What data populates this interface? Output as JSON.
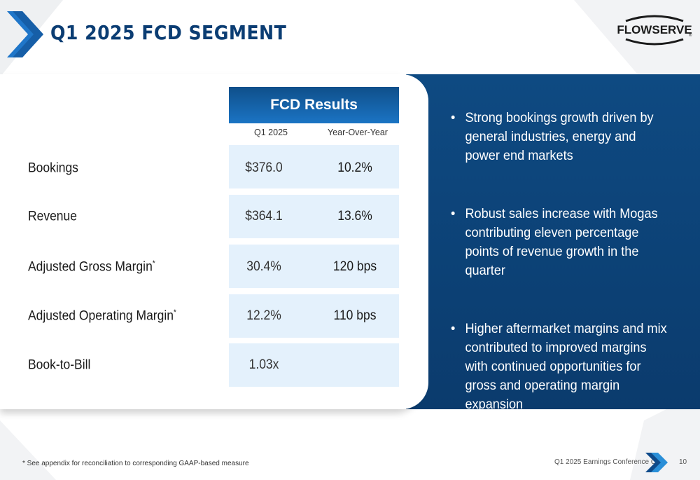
{
  "title": "Q1 2025 FCD SEGMENT",
  "logo": {
    "text": "FLOWSERVE",
    "registered": "®"
  },
  "results": {
    "header": "FCD Results",
    "col_q1": "Q1 2025",
    "col_yoy": "Year-Over-Year",
    "rows": [
      {
        "label": "Bookings",
        "sup": "",
        "q1": "$376.0",
        "yoy": "10.2%"
      },
      {
        "label": "Revenue",
        "sup": "",
        "q1": "$364.1",
        "yoy": "13.6%"
      },
      {
        "label": "Adjusted Gross Margin",
        "sup": "*",
        "q1": "30.4%",
        "yoy": "120 bps"
      },
      {
        "label": "Adjusted Operating Margin",
        "sup": "*",
        "q1": "12.2%",
        "yoy": "110 bps"
      },
      {
        "label": "Book-to-Bill",
        "sup": "",
        "q1": "1.03x",
        "yoy": ""
      }
    ]
  },
  "bullets": [
    "Strong bookings growth driven by general industries, energy and power end markets",
    "Robust sales increase with Mogas contributing eleven percentage points of revenue growth in the quarter",
    "Higher aftermarket margins and mix contributed to improved margins with continued opportunities for gross and operating margin expansion"
  ],
  "bullet_symbol": "•",
  "footnote": "* See appendix for reconciliation to corresponding GAAP-based measure",
  "footer_label": "Q1 2025 Earnings Conference Call",
  "page_number": "10",
  "colors": {
    "navy": "#0b3d73",
    "accent_blue": "#2a8fd8",
    "cell_bg": "#e4f1fc"
  }
}
